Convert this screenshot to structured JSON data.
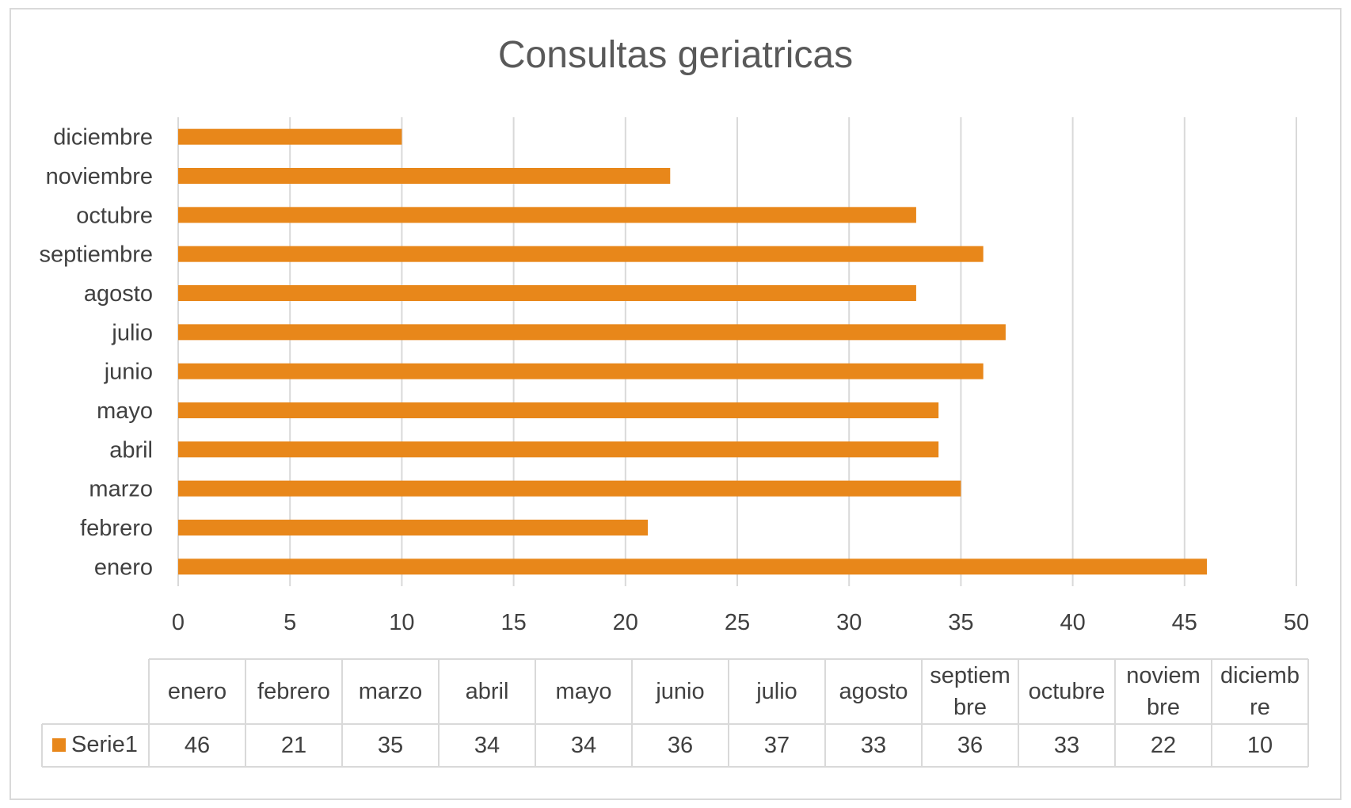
{
  "chart_data": {
    "type": "bar",
    "orientation": "horizontal",
    "title": "Consultas geriatricas",
    "categories": [
      "enero",
      "febrero",
      "marzo",
      "abril",
      "mayo",
      "junio",
      "julio",
      "agosto",
      "septiembre",
      "octubre",
      "noviembre",
      "diciembre"
    ],
    "series": [
      {
        "name": "Serie1",
        "values": [
          46,
          21,
          35,
          34,
          34,
          36,
          37,
          33,
          36,
          33,
          22,
          10
        ],
        "color": "#e8871a"
      }
    ],
    "xlim": [
      0,
      50
    ],
    "x_ticks": [
      0,
      5,
      10,
      15,
      20,
      25,
      30,
      35,
      40,
      45,
      50
    ],
    "grid": "vertical",
    "data_table": {
      "header_lines": [
        [
          "enero"
        ],
        [
          "febrero"
        ],
        [
          "marzo"
        ],
        [
          "abril"
        ],
        [
          "mayo"
        ],
        [
          "junio"
        ],
        [
          "julio"
        ],
        [
          "agosto"
        ],
        [
          "septiem",
          "bre"
        ],
        [
          "octubre"
        ],
        [
          "noviem",
          "bre"
        ],
        [
          "diciemb",
          "re"
        ]
      ],
      "series_label": "Serie1",
      "values": [
        "46",
        "21",
        "35",
        "34",
        "34",
        "36",
        "37",
        "33",
        "36",
        "33",
        "22",
        "10"
      ]
    }
  }
}
